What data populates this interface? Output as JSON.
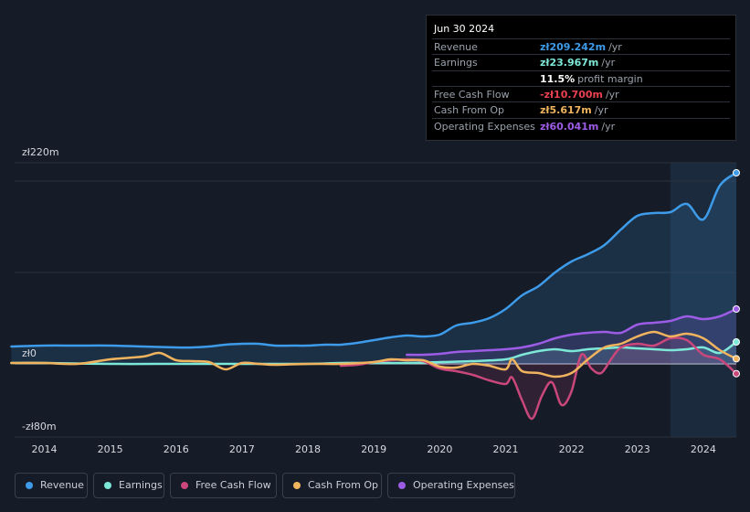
{
  "tooltip": {
    "date": "Jun 30 2024",
    "rows": [
      {
        "label": "Revenue",
        "value": "zł209.242m",
        "unit": "/yr",
        "color": "#3d9be9"
      },
      {
        "label": "Earnings",
        "value": "zł23.967m",
        "unit": "/yr",
        "color": "#7ee8d8"
      },
      {
        "label": "",
        "value": "11.5%",
        "unit": "profit margin",
        "color": "#ffffff"
      },
      {
        "label": "Free Cash Flow",
        "value": "-zł10.700m",
        "unit": "/yr",
        "color": "#e8414f"
      },
      {
        "label": "Cash From Op",
        "value": "zł5.617m",
        "unit": "/yr",
        "color": "#f0b35e"
      },
      {
        "label": "Operating Expenses",
        "value": "zł60.041m",
        "unit": "/yr",
        "color": "#9d5ce6"
      }
    ]
  },
  "legend": [
    {
      "label": "Revenue",
      "color": "#3d9be9"
    },
    {
      "label": "Earnings",
      "color": "#7ee8d8"
    },
    {
      "label": "Free Cash Flow",
      "color": "#c9477b"
    },
    {
      "label": "Cash From Op",
      "color": "#f0b35e"
    },
    {
      "label": "Operating Expenses",
      "color": "#9d5ce6"
    }
  ],
  "chart_data": {
    "type": "line",
    "title": "",
    "xlabel": "",
    "ylabel": "",
    "ylim": [
      -80,
      220
    ],
    "y_tick_labels": [
      "zł220m",
      "zł0",
      "-zł80m"
    ],
    "y_tick_values": [
      220,
      0,
      -80
    ],
    "gridlines": [
      200,
      100
    ],
    "x_tick_labels": [
      "2014",
      "2015",
      "2016",
      "2017",
      "2018",
      "2019",
      "2020",
      "2021",
      "2022",
      "2023",
      "2024"
    ],
    "x_tick_values": [
      2014,
      2015,
      2016,
      2017,
      2018,
      2019,
      2020,
      2021,
      2022,
      2023,
      2024
    ],
    "xlim": [
      2013.55,
      2024.5
    ],
    "highlight_start": 2023.5,
    "series": [
      {
        "name": "Revenue",
        "color": "#3d9be9",
        "fill": true,
        "x": [
          2013.5,
          2014,
          2014.5,
          2015,
          2015.5,
          2016,
          2016.25,
          2016.5,
          2016.75,
          2017,
          2017.25,
          2017.5,
          2017.75,
          2018,
          2018.25,
          2018.5,
          2018.75,
          2019,
          2019.25,
          2019.5,
          2019.75,
          2020,
          2020.25,
          2020.5,
          2020.75,
          2021,
          2021.25,
          2021.5,
          2021.75,
          2022,
          2022.25,
          2022.5,
          2022.75,
          2023,
          2023.25,
          2023.5,
          2023.75,
          2024,
          2024.25,
          2024.5
        ],
        "values": [
          19,
          20,
          20,
          20,
          19,
          18,
          18,
          19,
          21,
          22,
          22,
          20,
          20,
          20,
          21,
          21,
          23,
          26,
          29,
          31,
          30,
          32,
          42,
          45,
          50,
          60,
          75,
          85,
          100,
          112,
          120,
          130,
          147,
          162,
          165,
          166,
          175,
          158,
          195,
          209
        ]
      },
      {
        "name": "Earnings",
        "color": "#7ee8d8",
        "fill": true,
        "x": [
          2013.5,
          2014,
          2015,
          2016,
          2017,
          2018,
          2018.5,
          2019,
          2019.5,
          2020,
          2020.5,
          2021,
          2021.25,
          2021.5,
          2021.75,
          2022,
          2022.25,
          2022.5,
          2022.75,
          2023,
          2023.25,
          2023.5,
          2023.75,
          2024,
          2024.25,
          2024.5
        ],
        "values": [
          1,
          1,
          0,
          0,
          0,
          0,
          1,
          1,
          1,
          2,
          3,
          5,
          10,
          14,
          16,
          14,
          16,
          17,
          18,
          17,
          16,
          15,
          16,
          18,
          12,
          24
        ]
      },
      {
        "name": "Free Cash Flow",
        "color": "#c9477b",
        "fill": true,
        "x": [
          2018.5,
          2018.75,
          2019,
          2019.25,
          2019.5,
          2019.75,
          2020,
          2020.25,
          2020.5,
          2020.75,
          2021,
          2021.1,
          2021.25,
          2021.4,
          2021.55,
          2021.7,
          2021.85,
          2022,
          2022.15,
          2022.3,
          2022.45,
          2022.6,
          2022.75,
          2023,
          2023.25,
          2023.5,
          2023.75,
          2024,
          2024.25,
          2024.5
        ],
        "values": [
          -2,
          -1,
          2,
          4,
          5,
          3,
          -5,
          -8,
          -12,
          -18,
          -22,
          -15,
          -40,
          -60,
          -35,
          -20,
          -45,
          -30,
          10,
          -5,
          -10,
          5,
          18,
          22,
          20,
          28,
          26,
          10,
          5,
          -10.7
        ]
      },
      {
        "name": "Cash From Op",
        "color": "#f0b35e",
        "fill": false,
        "x": [
          2013.5,
          2014,
          2014.5,
          2015,
          2015.5,
          2015.75,
          2016,
          2016.25,
          2016.5,
          2016.75,
          2017,
          2017.25,
          2017.5,
          2018,
          2018.5,
          2019,
          2019.25,
          2019.5,
          2019.75,
          2020,
          2020.25,
          2020.5,
          2020.75,
          2021,
          2021.1,
          2021.25,
          2021.5,
          2021.75,
          2022,
          2022.25,
          2022.5,
          2022.75,
          2023,
          2023.25,
          2023.5,
          2023.75,
          2024,
          2024.25,
          2024.5
        ],
        "values": [
          1,
          1,
          0,
          5,
          8,
          12,
          4,
          3,
          2,
          -6,
          1,
          0,
          -1,
          0,
          0,
          2,
          5,
          4,
          4,
          -3,
          -4,
          0,
          -2,
          -6,
          5,
          -8,
          -10,
          -14,
          -10,
          5,
          18,
          22,
          30,
          35,
          30,
          33,
          28,
          15,
          5.6
        ]
      },
      {
        "name": "Operating Expenses",
        "color": "#9d5ce6",
        "fill": true,
        "x": [
          2019.5,
          2019.75,
          2020,
          2020.25,
          2020.5,
          2020.75,
          2021,
          2021.25,
          2021.5,
          2021.75,
          2022,
          2022.25,
          2022.5,
          2022.75,
          2023,
          2023.25,
          2023.5,
          2023.75,
          2024,
          2024.25,
          2024.5
        ],
        "values": [
          10,
          10,
          11,
          13,
          14,
          15,
          16,
          18,
          22,
          28,
          32,
          34,
          35,
          34,
          43,
          45,
          47,
          52,
          49,
          52,
          60
        ]
      }
    ]
  }
}
